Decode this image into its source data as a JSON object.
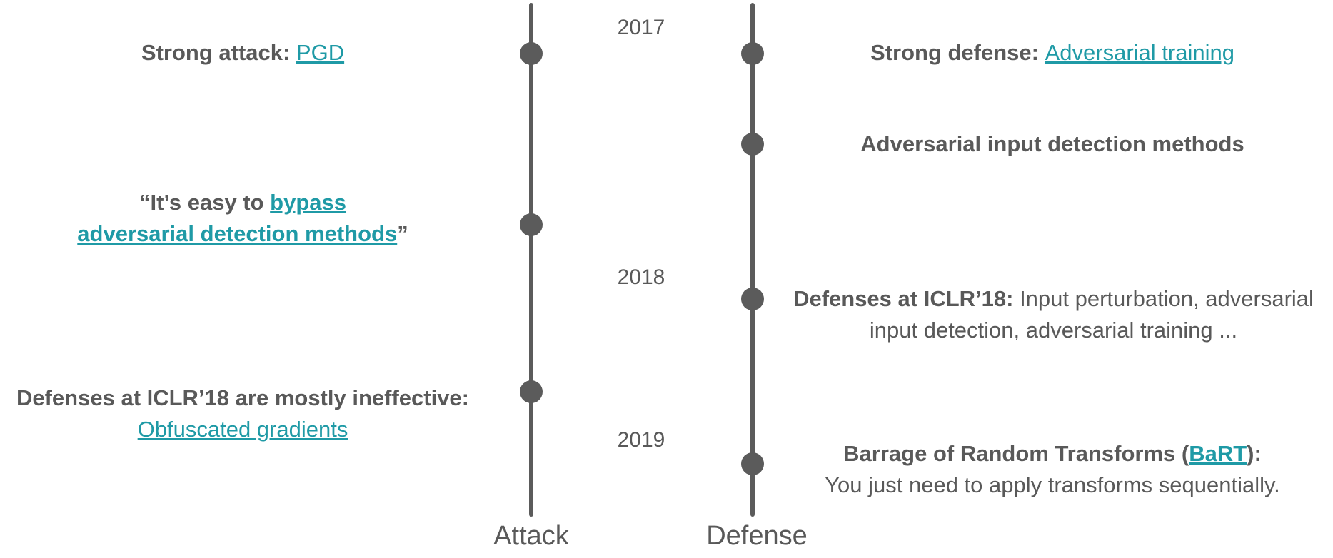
{
  "years": [
    "2017",
    "2018",
    "2019"
  ],
  "axes": {
    "attack_label": "Attack",
    "defense_label": "Defense"
  },
  "attack_events": [
    {
      "prefix": "Strong attack: ",
      "link": "PGD"
    },
    {
      "open_quote": "“It’s easy to ",
      "link_line1": "bypass",
      "link_line2": "adversarial detection methods",
      "close_quote": "”"
    },
    {
      "line1": "Defenses at ICLR’18 are mostly ineffective:",
      "link": "Obfuscated gradients"
    }
  ],
  "defense_events": [
    {
      "prefix": "Strong defense: ",
      "link": "Adversarial training"
    },
    {
      "title": "Adversarial input detection methods"
    },
    {
      "bold": "Defenses at ICLR’18:",
      "rest_line1": " Input perturbation, adversarial",
      "line2": "input detection, adversarial training ..."
    },
    {
      "prefix": "Barrage of Random Transforms (",
      "link": "BaRT",
      "suffix": "):",
      "line2": "You just need to apply transforms sequentially."
    }
  ],
  "colors": {
    "line": "#5b5b5b",
    "text": "#595959",
    "link": "#1f9aa6"
  }
}
